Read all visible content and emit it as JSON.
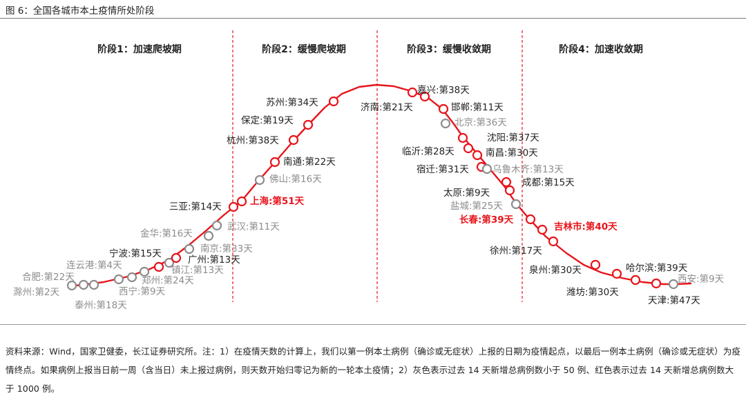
{
  "figure": {
    "title": "图 6：全国各城市本土疫情所处阶段"
  },
  "footnote": "资料来源：Wind，国家卫健委，长江证券研究所。注：1）在疫情天数的计算上，我们以第一例本土病例（确诊或无症状）上报的日期为疫情起点，以最后一例本土病例（确诊或无症状）为疫情终点。如果病例上报当日前一周（含当日）未上报过病例，则天数开始归零记为新的一轮本土疫情；2）灰色表示过去 14 天新增总病例数小于 50 例、红色表示过去 14 天新增总病例数大于 1000 例。",
  "colors": {
    "red": "#e8141b",
    "gray": "#8c8c8c",
    "text": "#222222",
    "circle_fill": "#ffffff"
  },
  "chart_data": {
    "type": "diagram",
    "stages": [
      "阶段1：加速爬坡期",
      "阶段2：缓慢爬坡期",
      "阶段3：缓慢收敛期",
      "阶段4：加速收敛期"
    ],
    "cities": [
      {
        "label": "合肥:第22天",
        "status": "gray"
      },
      {
        "label": "滁州:第2天",
        "status": "gray"
      },
      {
        "label": "泰州:第18天",
        "status": "gray"
      },
      {
        "label": "连云港:第4天",
        "status": "gray"
      },
      {
        "label": "西宁:第9天",
        "status": "gray"
      },
      {
        "label": "郑州:第24天",
        "status": "gray"
      },
      {
        "label": "宁波:第15天",
        "status": "normal"
      },
      {
        "label": "镇江:第13天",
        "status": "gray"
      },
      {
        "label": "广州:第13天",
        "status": "normal"
      },
      {
        "label": "南京:第33天",
        "status": "gray"
      },
      {
        "label": "金华:第16天",
        "status": "gray"
      },
      {
        "label": "武汉:第11天",
        "status": "gray"
      },
      {
        "label": "三亚:第14天",
        "status": "normal"
      },
      {
        "label": "上海:第51天",
        "status": "red"
      },
      {
        "label": "佛山:第16天",
        "status": "gray"
      },
      {
        "label": "南通:第22天",
        "status": "normal"
      },
      {
        "label": "杭州:第38天",
        "status": "normal"
      },
      {
        "label": "保定:第19天",
        "status": "normal"
      },
      {
        "label": "苏州:第34天",
        "status": "normal"
      },
      {
        "label": "嘉兴:第38天",
        "status": "normal"
      },
      {
        "label": "济南:第21天",
        "status": "normal"
      },
      {
        "label": "邯郸:第11天",
        "status": "normal"
      },
      {
        "label": "北京:第36天",
        "status": "gray"
      },
      {
        "label": "沈阳:第37天",
        "status": "normal"
      },
      {
        "label": "临沂:第28天",
        "status": "normal"
      },
      {
        "label": "南昌:第30天",
        "status": "normal"
      },
      {
        "label": "宿迁:第31天",
        "status": "normal"
      },
      {
        "label": "乌鲁木齐:第13天",
        "status": "gray"
      },
      {
        "label": "成都:第15天",
        "status": "normal"
      },
      {
        "label": "太原:第9天",
        "status": "normal"
      },
      {
        "label": "盐城:第25天",
        "status": "gray"
      },
      {
        "label": "长春:第39天",
        "status": "red"
      },
      {
        "label": "吉林市:第40天",
        "status": "red"
      },
      {
        "label": "徐州:第17天",
        "status": "normal"
      },
      {
        "label": "泉州:第30天",
        "status": "normal"
      },
      {
        "label": "哈尔滨:第39天",
        "status": "normal"
      },
      {
        "label": "潍坊:第30天",
        "status": "normal"
      },
      {
        "label": "西安:第9天",
        "status": "gray"
      },
      {
        "label": "天津:第47天",
        "status": "normal"
      }
    ]
  }
}
